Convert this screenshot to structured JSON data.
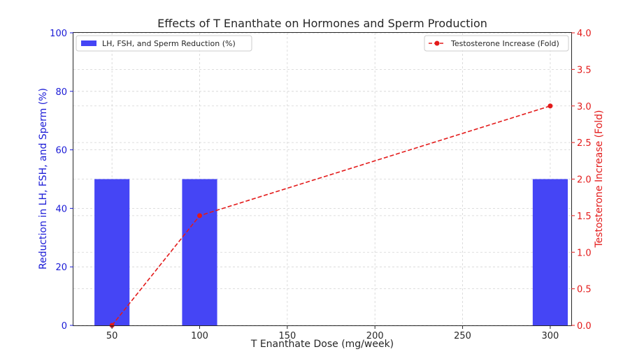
{
  "chart_data": {
    "type": "bar",
    "title": "Effects of T Enanthate on Hormones and Sperm Production",
    "xlabel": "T Enanthate Dose (mg/week)",
    "xlim": [
      28,
      312
    ],
    "x_ticks": [
      50,
      100,
      150,
      200,
      250,
      300
    ],
    "grid": true,
    "left_axis": {
      "label": "Reduction in LH, FSH, and Sperm (%)",
      "ylim": [
        0,
        100
      ],
      "ticks": [
        0,
        20,
        40,
        60,
        80,
        100
      ],
      "color": "#1a1ad6"
    },
    "right_axis": {
      "label": "Testosterone Increase (Fold)",
      "ylim": [
        0,
        4
      ],
      "ticks": [
        "0.0",
        "0.5",
        "1.0",
        "1.5",
        "2.0",
        "2.5",
        "3.0",
        "3.5",
        "4.0"
      ],
      "color": "#e31a1a"
    },
    "series": [
      {
        "name": "LH, FSH, and Sperm Reduction (%)",
        "type": "bar",
        "axis": "left",
        "x": [
          50,
          100,
          300
        ],
        "values": [
          50,
          50,
          50
        ],
        "bar_width_units": 20,
        "color": "#4545f5"
      },
      {
        "name": "Testosterone Increase (Fold)",
        "type": "line",
        "axis": "right",
        "style": "dashed",
        "marker": "circle",
        "x": [
          50,
          100,
          300
        ],
        "values": [
          0,
          1.5,
          3.0
        ],
        "color": "#e31a1a"
      }
    ],
    "legends": [
      {
        "series": 0,
        "placement": "top-left"
      },
      {
        "series": 1,
        "placement": "top-right"
      }
    ]
  }
}
